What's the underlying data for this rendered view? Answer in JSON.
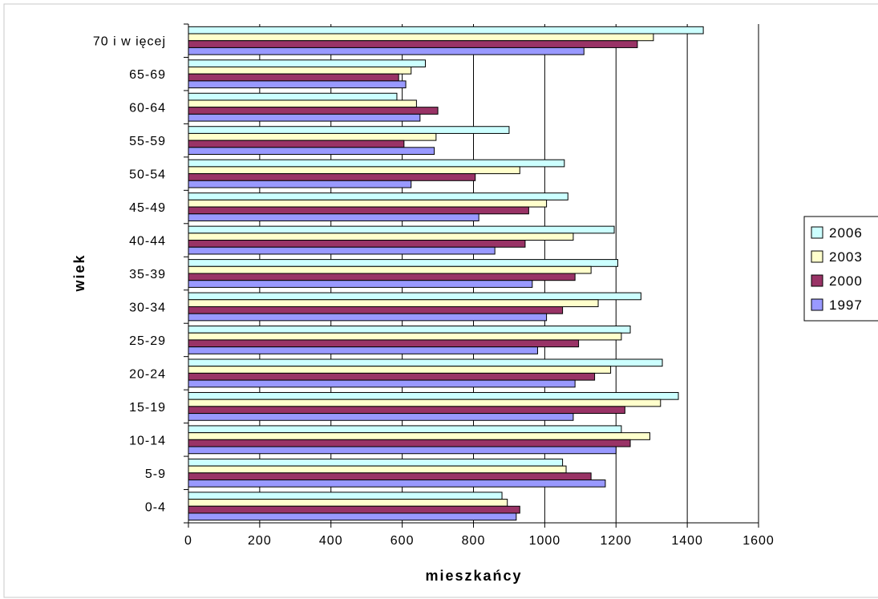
{
  "chart_data": {
    "type": "bar",
    "orientation": "horizontal",
    "categories": [
      "0-4",
      "5-9",
      "10-14",
      "15-19",
      "20-24",
      "25-29",
      "30-34",
      "35-39",
      "40-44",
      "45-49",
      "50-54",
      "55-59",
      "60-64",
      "65-69",
      "70 i w ięcej"
    ],
    "series": [
      {
        "name": "2006",
        "color": "#ccffff",
        "values": [
          880,
          1050,
          1215,
          1375,
          1330,
          1240,
          1270,
          1205,
          1195,
          1065,
          1055,
          900,
          585,
          665,
          1445
        ]
      },
      {
        "name": "2003",
        "color": "#ffffcc",
        "values": [
          895,
          1060,
          1295,
          1325,
          1185,
          1215,
          1150,
          1130,
          1080,
          1005,
          930,
          695,
          640,
          625,
          1305
        ]
      },
      {
        "name": "2000",
        "color": "#993366",
        "values": [
          930,
          1130,
          1240,
          1225,
          1140,
          1095,
          1050,
          1085,
          945,
          955,
          805,
          605,
          700,
          590,
          1260
        ]
      },
      {
        "name": "1997",
        "color": "#9999ff",
        "values": [
          920,
          1170,
          1200,
          1080,
          1085,
          980,
          1005,
          965,
          860,
          815,
          625,
          690,
          650,
          610,
          1110
        ]
      }
    ],
    "xlabel": "mieszkańcy",
    "ylabel": "wiek",
    "xlim": [
      0,
      1600
    ],
    "xticks": [
      0,
      200,
      400,
      600,
      800,
      1000,
      1200,
      1400,
      1600
    ],
    "grid": "vertical",
    "legend_position": "right"
  }
}
